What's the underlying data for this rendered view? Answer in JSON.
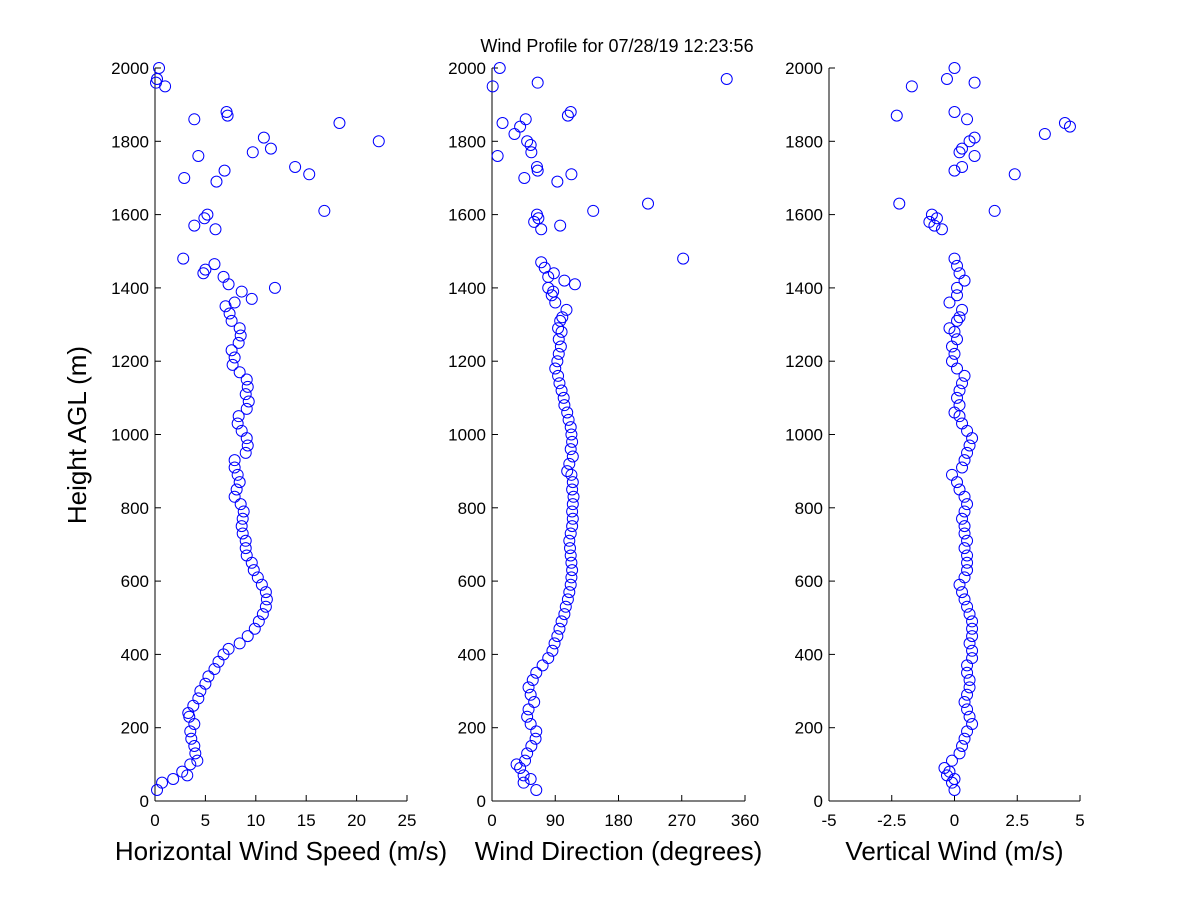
{
  "title": "Wind Profile for  07/28/19 12:23:56",
  "ylabel": "Height AGL (m)",
  "colors": {
    "marker": "#0000ff",
    "axis": "#000000",
    "background": "#ffffff"
  },
  "chart_data": [
    {
      "type": "scatter",
      "xlabel": "Horizontal Wind Speed (m/s)",
      "xlim": [
        0,
        25
      ],
      "ylim": [
        0,
        2000
      ],
      "xticks": [
        0,
        5,
        10,
        15,
        20,
        25
      ],
      "xtick_labels": [
        "0",
        "5",
        "10",
        "15",
        "20",
        "25"
      ],
      "yticks": [
        0,
        200,
        400,
        600,
        800,
        1000,
        1200,
        1400,
        1600,
        1800,
        2000
      ],
      "ytick_labels": [
        "0",
        "200",
        "400",
        "600",
        "800",
        "1000",
        "1200",
        "1400",
        "1600",
        "1800",
        "2000"
      ],
      "marker": "open-circle",
      "grid": false,
      "points": [
        [
          0.2,
          30
        ],
        [
          0.7,
          50
        ],
        [
          1.8,
          60
        ],
        [
          3.2,
          70
        ],
        [
          2.7,
          80
        ],
        [
          3.5,
          100
        ],
        [
          4.2,
          110
        ],
        [
          4.0,
          130
        ],
        [
          3.9,
          150
        ],
        [
          3.6,
          170
        ],
        [
          3.5,
          190
        ],
        [
          3.9,
          210
        ],
        [
          3.4,
          230
        ],
        [
          3.3,
          240
        ],
        [
          3.8,
          260
        ],
        [
          4.3,
          280
        ],
        [
          4.5,
          300
        ],
        [
          5.0,
          320
        ],
        [
          5.3,
          340
        ],
        [
          5.9,
          360
        ],
        [
          6.3,
          380
        ],
        [
          6.8,
          400
        ],
        [
          7.3,
          415
        ],
        [
          8.4,
          430
        ],
        [
          9.2,
          450
        ],
        [
          9.9,
          470
        ],
        [
          10.3,
          490
        ],
        [
          10.7,
          510
        ],
        [
          11.0,
          530
        ],
        [
          11.1,
          550
        ],
        [
          11.0,
          570
        ],
        [
          10.6,
          590
        ],
        [
          10.2,
          610
        ],
        [
          9.8,
          630
        ],
        [
          9.6,
          650
        ],
        [
          9.1,
          670
        ],
        [
          9.0,
          690
        ],
        [
          9.0,
          710
        ],
        [
          8.7,
          730
        ],
        [
          8.6,
          750
        ],
        [
          8.7,
          770
        ],
        [
          8.8,
          790
        ],
        [
          8.5,
          810
        ],
        [
          7.9,
          830
        ],
        [
          8.1,
          850
        ],
        [
          8.4,
          870
        ],
        [
          8.2,
          890
        ],
        [
          7.9,
          910
        ],
        [
          7.9,
          930
        ],
        [
          9.0,
          950
        ],
        [
          9.2,
          970
        ],
        [
          9.1,
          990
        ],
        [
          8.6,
          1010
        ],
        [
          8.2,
          1030
        ],
        [
          8.3,
          1050
        ],
        [
          9.1,
          1070
        ],
        [
          9.3,
          1090
        ],
        [
          9.0,
          1110
        ],
        [
          9.2,
          1130
        ],
        [
          9.1,
          1150
        ],
        [
          8.4,
          1170
        ],
        [
          7.7,
          1190
        ],
        [
          7.9,
          1210
        ],
        [
          7.6,
          1230
        ],
        [
          8.3,
          1250
        ],
        [
          8.5,
          1270
        ],
        [
          8.4,
          1290
        ],
        [
          7.6,
          1310
        ],
        [
          7.4,
          1330
        ],
        [
          7.0,
          1350
        ],
        [
          7.9,
          1360
        ],
        [
          9.6,
          1370
        ],
        [
          8.6,
          1390
        ],
        [
          11.9,
          1400
        ],
        [
          7.3,
          1410
        ],
        [
          6.8,
          1430
        ],
        [
          4.8,
          1440
        ],
        [
          5.0,
          1450
        ],
        [
          5.9,
          1465
        ],
        [
          2.8,
          1480
        ],
        [
          6.0,
          1560
        ],
        [
          3.9,
          1570
        ],
        [
          4.9,
          1590
        ],
        [
          5.2,
          1600
        ],
        [
          16.8,
          1610
        ],
        [
          2.9,
          1700
        ],
        [
          6.1,
          1690
        ],
        [
          15.3,
          1710
        ],
        [
          6.9,
          1720
        ],
        [
          13.9,
          1730
        ],
        [
          4.3,
          1760
        ],
        [
          9.7,
          1770
        ],
        [
          11.5,
          1780
        ],
        [
          22.2,
          1800
        ],
        [
          10.8,
          1810
        ],
        [
          18.3,
          1850
        ],
        [
          3.9,
          1860
        ],
        [
          7.2,
          1870
        ],
        [
          7.1,
          1880
        ],
        [
          1.0,
          1950
        ],
        [
          0.1,
          1960
        ],
        [
          0.2,
          1970
        ],
        [
          0.4,
          2000
        ]
      ]
    },
    {
      "type": "scatter",
      "xlabel": "Wind Direction (degrees)",
      "xlim": [
        0,
        360
      ],
      "ylim": [
        0,
        2000
      ],
      "xticks": [
        0,
        90,
        180,
        270,
        360
      ],
      "xtick_labels": [
        "0",
        "90",
        "180",
        "270",
        "360"
      ],
      "yticks": [
        0,
        200,
        400,
        600,
        800,
        1000,
        1200,
        1400,
        1600,
        1800,
        2000
      ],
      "ytick_labels": [
        "0",
        "200",
        "400",
        "600",
        "800",
        "1000",
        "1200",
        "1400",
        "1600",
        "1800",
        "2000"
      ],
      "marker": "open-circle",
      "grid": false,
      "points": [
        [
          63,
          30
        ],
        [
          45,
          50
        ],
        [
          55,
          60
        ],
        [
          45,
          70
        ],
        [
          40,
          90
        ],
        [
          35,
          100
        ],
        [
          47,
          110
        ],
        [
          50,
          130
        ],
        [
          56,
          150
        ],
        [
          62,
          170
        ],
        [
          63,
          190
        ],
        [
          55,
          210
        ],
        [
          50,
          230
        ],
        [
          52,
          250
        ],
        [
          60,
          270
        ],
        [
          55,
          290
        ],
        [
          52,
          310
        ],
        [
          58,
          330
        ],
        [
          63,
          350
        ],
        [
          72,
          370
        ],
        [
          80,
          390
        ],
        [
          86,
          410
        ],
        [
          89,
          430
        ],
        [
          93,
          450
        ],
        [
          96,
          470
        ],
        [
          99,
          490
        ],
        [
          103,
          510
        ],
        [
          105,
          530
        ],
        [
          108,
          550
        ],
        [
          110,
          570
        ],
        [
          112,
          590
        ],
        [
          113,
          610
        ],
        [
          114,
          630
        ],
        [
          113,
          650
        ],
        [
          112,
          670
        ],
        [
          111,
          690
        ],
        [
          110,
          710
        ],
        [
          112,
          730
        ],
        [
          114,
          750
        ],
        [
          115,
          770
        ],
        [
          114,
          790
        ],
        [
          115,
          810
        ],
        [
          116,
          830
        ],
        [
          114,
          850
        ],
        [
          115,
          870
        ],
        [
          113,
          890
        ],
        [
          107,
          900
        ],
        [
          110,
          920
        ],
        [
          115,
          940
        ],
        [
          112,
          960
        ],
        [
          114,
          980
        ],
        [
          113,
          1000
        ],
        [
          112,
          1020
        ],
        [
          109,
          1040
        ],
        [
          107,
          1060
        ],
        [
          103,
          1080
        ],
        [
          102,
          1100
        ],
        [
          99,
          1120
        ],
        [
          96,
          1140
        ],
        [
          94,
          1160
        ],
        [
          90,
          1180
        ],
        [
          93,
          1200
        ],
        [
          95,
          1220
        ],
        [
          98,
          1240
        ],
        [
          95,
          1260
        ],
        [
          99,
          1280
        ],
        [
          94,
          1290
        ],
        [
          97,
          1310
        ],
        [
          100,
          1320
        ],
        [
          106,
          1340
        ],
        [
          90,
          1360
        ],
        [
          85,
          1380
        ],
        [
          87,
          1390
        ],
        [
          80,
          1400
        ],
        [
          118,
          1410
        ],
        [
          103,
          1420
        ],
        [
          80,
          1430
        ],
        [
          88,
          1440
        ],
        [
          75,
          1455
        ],
        [
          70,
          1470
        ],
        [
          272,
          1480
        ],
        [
          70,
          1560
        ],
        [
          97,
          1570
        ],
        [
          60,
          1580
        ],
        [
          66,
          1590
        ],
        [
          64,
          1600
        ],
        [
          144,
          1610
        ],
        [
          222,
          1630
        ],
        [
          93,
          1690
        ],
        [
          46,
          1700
        ],
        [
          113,
          1710
        ],
        [
          65,
          1720
        ],
        [
          64,
          1730
        ],
        [
          8,
          1760
        ],
        [
          56,
          1770
        ],
        [
          55,
          1790
        ],
        [
          50,
          1800
        ],
        [
          32,
          1820
        ],
        [
          40,
          1840
        ],
        [
          15,
          1850
        ],
        [
          48,
          1860
        ],
        [
          108,
          1870
        ],
        [
          112,
          1880
        ],
        [
          1,
          1950
        ],
        [
          65,
          1960
        ],
        [
          334,
          1970
        ],
        [
          11,
          2000
        ]
      ]
    },
    {
      "type": "scatter",
      "xlabel": "Vertical Wind (m/s)",
      "xlim": [
        -5,
        5
      ],
      "ylim": [
        0,
        2000
      ],
      "xticks": [
        -5,
        -2.5,
        0,
        2.5,
        5
      ],
      "xtick_labels": [
        "-5",
        "-2.5",
        "0",
        "2.5",
        "5"
      ],
      "yticks": [
        0,
        200,
        400,
        600,
        800,
        1000,
        1200,
        1400,
        1600,
        1800,
        2000
      ],
      "ytick_labels": [
        "0",
        "200",
        "400",
        "600",
        "800",
        "1000",
        "1200",
        "1400",
        "1600",
        "1800",
        "2000"
      ],
      "marker": "open-circle",
      "grid": false,
      "points": [
        [
          0.0,
          30
        ],
        [
          -0.1,
          50
        ],
        [
          0.0,
          60
        ],
        [
          -0.3,
          70
        ],
        [
          -0.2,
          80
        ],
        [
          -0.4,
          90
        ],
        [
          -0.1,
          110
        ],
        [
          0.2,
          130
        ],
        [
          0.3,
          150
        ],
        [
          0.4,
          170
        ],
        [
          0.5,
          190
        ],
        [
          0.7,
          210
        ],
        [
          0.6,
          230
        ],
        [
          0.5,
          250
        ],
        [
          0.4,
          270
        ],
        [
          0.5,
          290
        ],
        [
          0.6,
          310
        ],
        [
          0.6,
          330
        ],
        [
          0.5,
          350
        ],
        [
          0.5,
          370
        ],
        [
          0.7,
          390
        ],
        [
          0.7,
          410
        ],
        [
          0.6,
          430
        ],
        [
          0.7,
          450
        ],
        [
          0.7,
          470
        ],
        [
          0.7,
          490
        ],
        [
          0.6,
          510
        ],
        [
          0.5,
          530
        ],
        [
          0.4,
          550
        ],
        [
          0.3,
          570
        ],
        [
          0.2,
          590
        ],
        [
          0.4,
          610
        ],
        [
          0.5,
          630
        ],
        [
          0.5,
          650
        ],
        [
          0.5,
          670
        ],
        [
          0.4,
          690
        ],
        [
          0.5,
          710
        ],
        [
          0.4,
          730
        ],
        [
          0.4,
          750
        ],
        [
          0.3,
          770
        ],
        [
          0.4,
          790
        ],
        [
          0.5,
          810
        ],
        [
          0.4,
          830
        ],
        [
          0.2,
          850
        ],
        [
          0.1,
          870
        ],
        [
          -0.1,
          890
        ],
        [
          0.3,
          910
        ],
        [
          0.4,
          930
        ],
        [
          0.5,
          950
        ],
        [
          0.6,
          970
        ],
        [
          0.7,
          990
        ],
        [
          0.5,
          1010
        ],
        [
          0.3,
          1030
        ],
        [
          0.2,
          1050
        ],
        [
          0.0,
          1060
        ],
        [
          0.2,
          1080
        ],
        [
          0.1,
          1100
        ],
        [
          0.2,
          1120
        ],
        [
          0.3,
          1140
        ],
        [
          0.4,
          1160
        ],
        [
          0.1,
          1180
        ],
        [
          -0.1,
          1200
        ],
        [
          0.0,
          1220
        ],
        [
          -0.1,
          1240
        ],
        [
          0.1,
          1260
        ],
        [
          0.0,
          1280
        ],
        [
          -0.2,
          1290
        ],
        [
          0.1,
          1310
        ],
        [
          0.2,
          1320
        ],
        [
          0.3,
          1340
        ],
        [
          -0.2,
          1360
        ],
        [
          0.1,
          1380
        ],
        [
          0.1,
          1400
        ],
        [
          0.4,
          1420
        ],
        [
          0.2,
          1440
        ],
        [
          0.1,
          1460
        ],
        [
          0.0,
          1480
        ],
        [
          -0.5,
          1560
        ],
        [
          -0.8,
          1570
        ],
        [
          -1.0,
          1580
        ],
        [
          -0.7,
          1590
        ],
        [
          -0.9,
          1600
        ],
        [
          1.6,
          1610
        ],
        [
          -2.2,
          1630
        ],
        [
          2.4,
          1710
        ],
        [
          0.0,
          1720
        ],
        [
          0.3,
          1730
        ],
        [
          0.8,
          1760
        ],
        [
          0.2,
          1770
        ],
        [
          0.3,
          1780
        ],
        [
          0.6,
          1800
        ],
        [
          0.8,
          1810
        ],
        [
          3.6,
          1820
        ],
        [
          4.6,
          1840
        ],
        [
          4.4,
          1850
        ],
        [
          0.5,
          1860
        ],
        [
          -2.3,
          1870
        ],
        [
          0.0,
          1880
        ],
        [
          -1.7,
          1950
        ],
        [
          0.8,
          1960
        ],
        [
          -0.3,
          1970
        ],
        [
          0.0,
          2000
        ]
      ]
    }
  ]
}
